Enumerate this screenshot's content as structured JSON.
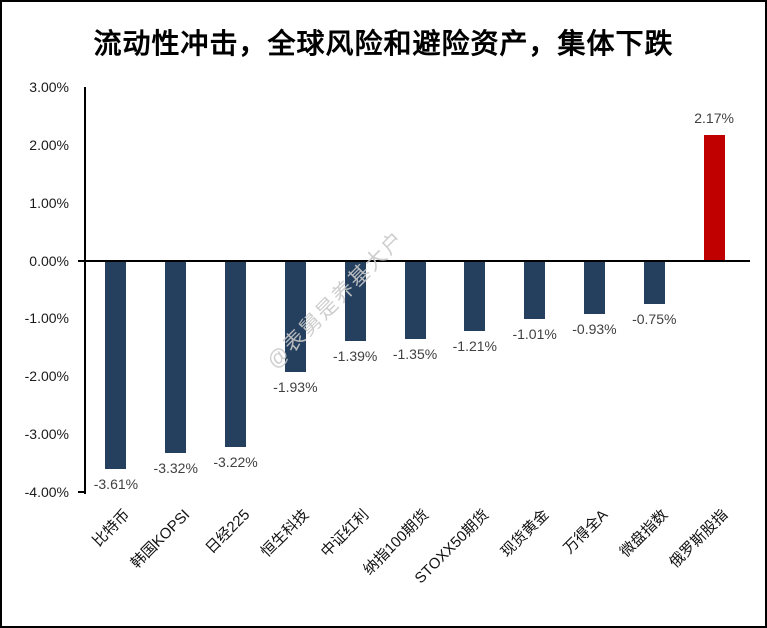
{
  "page": {
    "background": "#ffffff",
    "frame_border": "#000000"
  },
  "chart_data": {
    "type": "bar",
    "title": "流动性冲击，全球风险和避险资产，集体下跌",
    "categories": [
      "比特币",
      "韩国KOPSI",
      "日经225",
      "恒生科技",
      "中证红利",
      "纳指100期货",
      "STOXX50期货",
      "现货黄金",
      "万得全A",
      "微盘指数",
      "俄罗斯股指"
    ],
    "values": [
      -3.61,
      -3.32,
      -3.22,
      -1.93,
      -1.39,
      -1.35,
      -1.21,
      -1.01,
      -0.93,
      -0.75,
      2.17
    ],
    "value_labels": [
      "-3.61%",
      "-3.32%",
      "-3.22%",
      "-1.93%",
      "-1.39%",
      "-1.35%",
      "-1.21%",
      "-1.01%",
      "-0.93%",
      "-0.75%",
      "2.17%"
    ],
    "ylim": [
      -4,
      3
    ],
    "ytick_values": [
      3,
      2,
      1,
      0,
      -1,
      -2,
      -3,
      -4
    ],
    "ytick_labels": [
      "3.00%",
      "2.00%",
      "1.00%",
      "0.00%",
      "-1.00%",
      "-2.00%",
      "-3.00%",
      "-4.00%"
    ],
    "grid": false,
    "legend": "none",
    "watermark": "@表舅是养基大户",
    "colors": {
      "negative_bar": "#24405E",
      "positive_bar": "#C00000",
      "value_label": "#404040",
      "axis": "#000000",
      "tick_label": "#1a1a1a",
      "watermark": "#c9c9c9"
    }
  }
}
